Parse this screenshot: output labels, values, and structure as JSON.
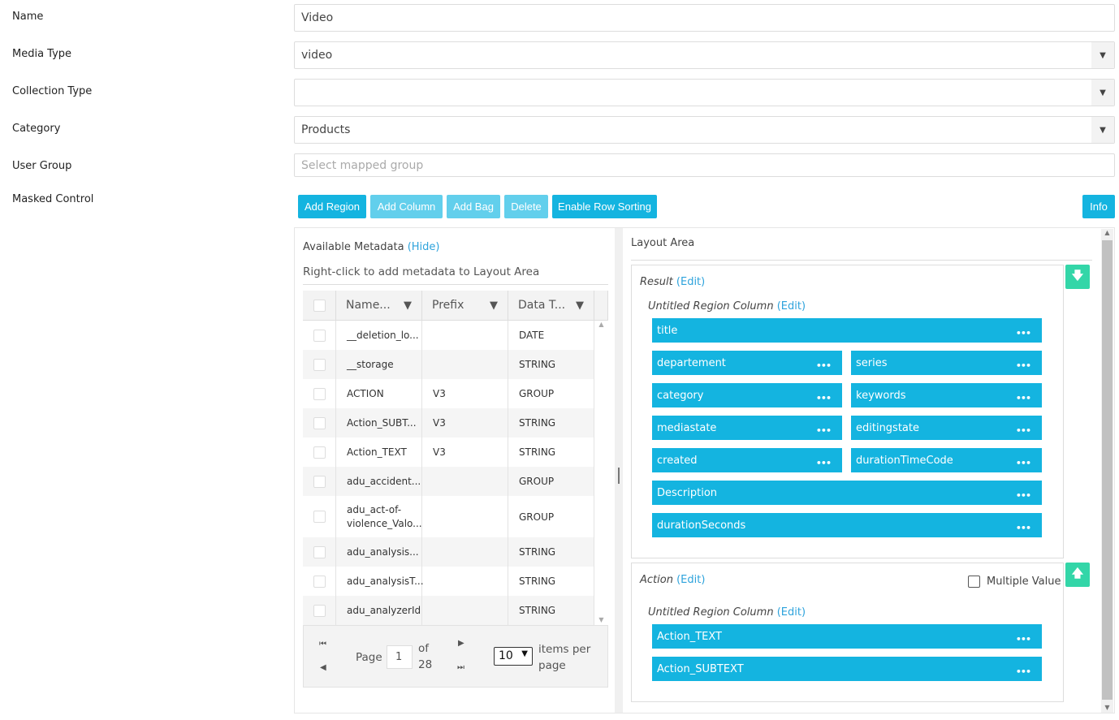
{
  "form": {
    "name": {
      "label": "Name",
      "value": "Video"
    },
    "media_type": {
      "label": "Media Type",
      "value": "video"
    },
    "collection_type": {
      "label": "Collection Type",
      "value": ""
    },
    "category": {
      "label": "Category",
      "value": "Products"
    },
    "user_group": {
      "label": "User Group",
      "placeholder": "Select mapped group"
    },
    "masked_control": {
      "label": "Masked Control"
    }
  },
  "toolbar": {
    "add_region": "Add Region",
    "add_column": "Add Column",
    "add_bag": "Add Bag",
    "delete": "Delete",
    "enable_row_sorting": "Enable Row Sorting",
    "info": "Info"
  },
  "metadata": {
    "title": "Available Metadata",
    "hide": "(Hide)",
    "hint": "Right-click to add metadata to Layout Area",
    "columns": [
      "Name...",
      "Prefix",
      "Data T..."
    ],
    "rows": [
      {
        "name": "__deletion_lo...",
        "prefix": "",
        "type": "DATE"
      },
      {
        "name": "__storage",
        "prefix": "",
        "type": "STRING"
      },
      {
        "name": "ACTION",
        "prefix": "V3",
        "type": "GROUP"
      },
      {
        "name": "Action_SUBT...",
        "prefix": "V3",
        "type": "STRING"
      },
      {
        "name": "Action_TEXT",
        "prefix": "V3",
        "type": "STRING"
      },
      {
        "name": "adu_accident...",
        "prefix": "",
        "type": "GROUP"
      },
      {
        "name": "adu_act-of-violence_Valo...",
        "prefix": "",
        "type": "GROUP"
      },
      {
        "name": "adu_analysis...",
        "prefix": "",
        "type": "STRING"
      },
      {
        "name": "adu_analysisT...",
        "prefix": "",
        "type": "STRING"
      },
      {
        "name": "adu_analyzerId",
        "prefix": "",
        "type": "STRING"
      }
    ],
    "pager": {
      "page_label": "Page",
      "page": "1",
      "of": "of",
      "total": "28",
      "per_page": "10",
      "items_per_page": "items per page"
    }
  },
  "layout": {
    "title": "Layout Area",
    "edit": "(Edit)",
    "regions": [
      {
        "title": "Result",
        "column": "Untitled Region Column",
        "items": [
          "title",
          "departement",
          "series",
          "category",
          "keywords",
          "mediastate",
          "editingstate",
          "created",
          "durationTimeCode",
          "Description",
          "durationSeconds"
        ]
      },
      {
        "title": "Action",
        "column": "Untitled Region Column",
        "multiple_value": "Multiple Value",
        "multiple_checked": false,
        "items": [
          "Action_TEXT",
          "Action_SUBTEXT"
        ]
      }
    ]
  },
  "colors": {
    "primary": "#14b4e0",
    "primary_disabled": "#62cfec",
    "move": "#33d6a8"
  }
}
